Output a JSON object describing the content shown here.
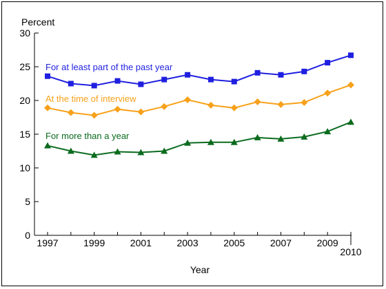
{
  "chart_data": {
    "type": "line",
    "title": "",
    "ylabel": "Percent",
    "xlabel": "Year",
    "ylim": [
      0,
      30
    ],
    "yticks": [
      0,
      5,
      10,
      15,
      20,
      25,
      30
    ],
    "x": [
      1997,
      1998,
      1999,
      2000,
      2001,
      2002,
      2003,
      2004,
      2005,
      2006,
      2007,
      2008,
      2009,
      2010
    ],
    "xtick_labels": [
      "1997",
      "1999",
      "2001",
      "2003",
      "2005",
      "2007",
      "2009",
      "2010"
    ],
    "grid": false,
    "legend": "inline labels above each series",
    "series": [
      {
        "name": "For at least part of the past year",
        "color": "#1f1fe0",
        "marker": "square",
        "values": [
          23.6,
          22.5,
          22.2,
          22.9,
          22.4,
          23.1,
          23.8,
          23.1,
          22.8,
          24.1,
          23.8,
          24.3,
          25.6,
          26.7
        ]
      },
      {
        "name": "At the time of interview",
        "color": "#f7a11a",
        "marker": "diamond",
        "values": [
          18.9,
          18.2,
          17.8,
          18.7,
          18.3,
          19.1,
          20.1,
          19.3,
          18.9,
          19.8,
          19.4,
          19.7,
          21.1,
          22.3
        ]
      },
      {
        "name": "For more than a year",
        "color": "#0b6b1e",
        "marker": "triangle",
        "values": [
          13.3,
          12.5,
          11.9,
          12.4,
          12.3,
          12.5,
          13.7,
          13.8,
          13.8,
          14.5,
          14.3,
          14.6,
          15.4,
          16.8
        ]
      }
    ]
  }
}
